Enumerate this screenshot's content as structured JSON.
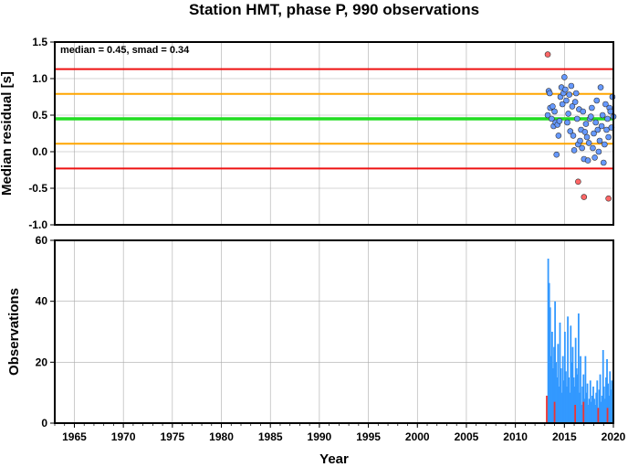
{
  "chart_data": [
    {
      "type": "scatter",
      "title": "Station HMT, phase P, 990 observations",
      "ylabel": "Median residual [s]",
      "annotation": "median = 0.45, smad = 0.34",
      "xlim": [
        1963,
        2020
      ],
      "ylim": [
        -1.0,
        1.5
      ],
      "ytick_labels": [
        "1.5",
        "1.0",
        "0.5",
        "0.0",
        "-0.5",
        "-1.0"
      ],
      "grid": true,
      "reference_lines": [
        {
          "name": "median",
          "y": 0.45,
          "color": "#22dd22"
        },
        {
          "name": "upper-1smad",
          "y": 0.79,
          "color": "#ffa500"
        },
        {
          "name": "lower-1smad",
          "y": 0.11,
          "color": "#ffa500"
        },
        {
          "name": "upper-2smad",
          "y": 1.13,
          "color": "#ee1111"
        },
        {
          "name": "lower-2smad",
          "y": -0.23,
          "color": "#ee1111"
        }
      ],
      "series": [
        {
          "color": "#6699ff",
          "points": [
            [
              2013.3,
              0.5
            ],
            [
              2013.4,
              0.83
            ],
            [
              2013.5,
              0.8
            ],
            [
              2013.55,
              0.6
            ],
            [
              2013.7,
              0.45
            ],
            [
              2013.8,
              0.62
            ],
            [
              2013.9,
              0.35
            ],
            [
              2014.0,
              0.55
            ],
            [
              2014.1,
              0.4
            ],
            [
              2014.2,
              -0.04
            ],
            [
              2014.3,
              0.37
            ],
            [
              2014.4,
              0.22
            ],
            [
              2014.5,
              0.42
            ],
            [
              2014.6,
              0.75
            ],
            [
              2014.7,
              0.88
            ],
            [
              2014.8,
              0.65
            ],
            [
              2014.9,
              0.8
            ],
            [
              2015.0,
              1.02
            ],
            [
              2015.1,
              0.85
            ],
            [
              2015.2,
              0.7
            ],
            [
              2015.3,
              0.4
            ],
            [
              2015.4,
              0.52
            ],
            [
              2015.5,
              0.78
            ],
            [
              2015.6,
              0.28
            ],
            [
              2015.7,
              0.9
            ],
            [
              2015.8,
              0.62
            ],
            [
              2015.9,
              0.22
            ],
            [
              2016.0,
              0.02
            ],
            [
              2016.1,
              0.68
            ],
            [
              2016.2,
              0.8
            ],
            [
              2016.3,
              0.45
            ],
            [
              2016.4,
              0.1
            ],
            [
              2016.5,
              0.58
            ],
            [
              2016.6,
              0.15
            ],
            [
              2016.7,
              0.3
            ],
            [
              2016.8,
              0.05
            ],
            [
              2016.9,
              0.55
            ],
            [
              2017.0,
              -0.1
            ],
            [
              2017.1,
              0.27
            ],
            [
              2017.2,
              0.38
            ],
            [
              2017.3,
              0.2
            ],
            [
              2017.4,
              -0.12
            ],
            [
              2017.5,
              0.12
            ],
            [
              2017.6,
              0.45
            ],
            [
              2017.7,
              0.48
            ],
            [
              2017.8,
              0.6
            ],
            [
              2017.9,
              0.05
            ],
            [
              2018.0,
              0.25
            ],
            [
              2018.1,
              -0.08
            ],
            [
              2018.2,
              0.4
            ],
            [
              2018.3,
              0.7
            ],
            [
              2018.4,
              0.3
            ],
            [
              2018.5,
              0.0
            ],
            [
              2018.6,
              0.15
            ],
            [
              2018.7,
              0.88
            ],
            [
              2018.8,
              0.35
            ],
            [
              2018.9,
              0.5
            ],
            [
              2019.0,
              -0.15
            ],
            [
              2019.1,
              0.1
            ],
            [
              2019.2,
              0.65
            ],
            [
              2019.3,
              0.3
            ],
            [
              2019.4,
              0.45
            ],
            [
              2019.5,
              0.2
            ],
            [
              2019.6,
              0.6
            ],
            [
              2019.7,
              0.55
            ],
            [
              2019.8,
              0.33
            ],
            [
              2019.9,
              0.75
            ],
            [
              2020.0,
              0.48
            ]
          ]
        },
        {
          "color": "#ff6666",
          "points": [
            [
              2013.3,
              1.33
            ],
            [
              2016.4,
              -0.41
            ],
            [
              2017.0,
              -0.62
            ],
            [
              2019.5,
              -0.64
            ]
          ]
        }
      ]
    },
    {
      "type": "bar",
      "ylabel": "Observations",
      "xlabel": "Year",
      "xlim": [
        1963,
        2020
      ],
      "ylim": [
        0,
        60
      ],
      "xtick_labels": [
        "1965",
        "1970",
        "1975",
        "1980",
        "1985",
        "1990",
        "1995",
        "2000",
        "2005",
        "2010",
        "2015",
        "2020"
      ],
      "ytick_labels": [
        "60",
        "40",
        "20",
        "0"
      ],
      "grid": true,
      "series": [
        {
          "color": "#3399ff",
          "x": [
            2013.35,
            2013.45,
            2013.55,
            2013.65,
            2013.75,
            2013.85,
            2013.95,
            2014.05,
            2014.15,
            2014.25,
            2014.35,
            2014.45,
            2014.55,
            2014.65,
            2014.75,
            2014.85,
            2014.95,
            2015.05,
            2015.15,
            2015.25,
            2015.35,
            2015.45,
            2015.55,
            2015.65,
            2015.75,
            2015.85,
            2015.95,
            2016.05,
            2016.15,
            2016.25,
            2016.35,
            2016.45,
            2016.55,
            2016.65,
            2016.75,
            2016.85,
            2016.95,
            2017.05,
            2017.15,
            2017.25,
            2017.35,
            2017.45,
            2017.55,
            2017.65,
            2017.75,
            2017.85,
            2017.95,
            2018.05,
            2018.15,
            2018.25,
            2018.35,
            2018.45,
            2018.55,
            2018.65,
            2018.75,
            2018.85,
            2018.95,
            2019.05,
            2019.15,
            2019.25,
            2019.35,
            2019.45,
            2019.55,
            2019.65,
            2019.75,
            2019.85,
            2019.95
          ],
          "values": [
            54,
            46,
            38,
            22,
            30,
            18,
            25,
            40,
            20,
            15,
            26,
            12,
            33,
            18,
            10,
            22,
            14,
            30,
            17,
            12,
            35,
            15,
            10,
            32,
            20,
            25,
            15,
            12,
            28,
            18,
            16,
            36,
            10,
            22,
            6,
            12,
            16,
            8,
            22,
            10,
            13,
            6,
            8,
            14,
            7,
            9,
            12,
            8,
            6,
            10,
            14,
            5,
            11,
            16,
            7,
            9,
            24,
            12,
            8,
            15,
            21,
            13,
            9,
            17,
            11,
            14,
            8
          ]
        },
        {
          "color": "#ee3333",
          "x": [
            2013.2,
            2014.0,
            2016.1,
            2016.95,
            2018.45,
            2019.4
          ],
          "values": [
            9,
            7,
            6,
            7,
            5,
            5
          ]
        }
      ]
    }
  ]
}
